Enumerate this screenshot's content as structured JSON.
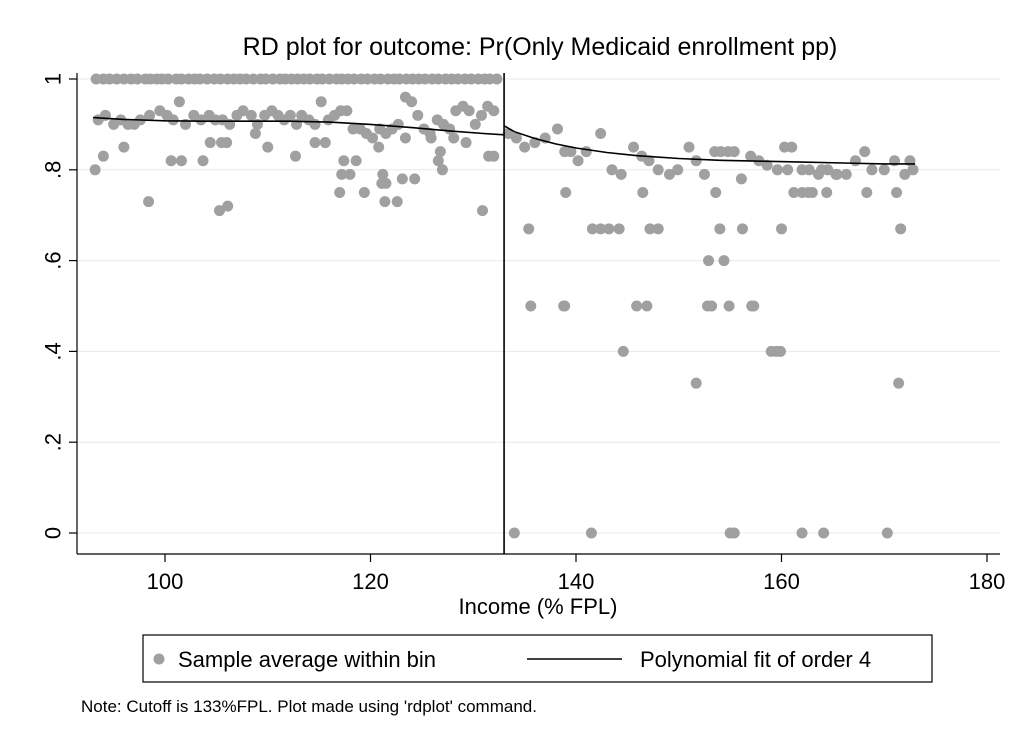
{
  "chart_data": {
    "type": "scatter",
    "title": "RD plot for outcome: Pr(Only Medicaid enrollment pp)",
    "xlabel": "Income (% FPL)",
    "ylabel": "",
    "xlim": [
      92,
      182
    ],
    "ylim": [
      0,
      1
    ],
    "xticks": [
      {
        "value": 100,
        "label": "100"
      },
      {
        "value": 120,
        "label": "120"
      },
      {
        "value": 140,
        "label": "140"
      },
      {
        "value": 160,
        "label": "160"
      },
      {
        "value": 180,
        "label": "180"
      }
    ],
    "yticks": [
      {
        "value": 0,
        "label": "0"
      },
      {
        "value": 0.2,
        "label": ".2"
      },
      {
        "value": 0.4,
        "label": ".4"
      },
      {
        "value": 0.6,
        "label": ".6"
      },
      {
        "value": 0.8,
        "label": ".8"
      },
      {
        "value": 1,
        "label": "1"
      }
    ],
    "grid": true,
    "cutoff": 133,
    "colors": {
      "points": "#a0a0a0",
      "fit": "#000000",
      "cutoff": "#000000",
      "grid": "#e8e8e8"
    },
    "legend": {
      "placement": "bottom",
      "entries": [
        {
          "label": "Sample average within bin",
          "marker": "circle"
        },
        {
          "label": "Polynomial fit of order 4",
          "marker": "line"
        }
      ]
    },
    "note": "Note: Cutoff is 133%FPL. Plot made using 'rdplot' command.",
    "series": [
      {
        "kind": "points",
        "x": [
          93.3,
          94.0,
          94.6,
          95.3,
          96.0,
          96.7,
          97.3,
          98.1,
          98.6,
          99.2,
          99.7,
          100.3,
          101.1,
          101.6,
          102.3,
          102.9,
          103.4,
          104.1,
          104.8,
          105.4,
          106.1,
          106.7,
          107.3,
          107.9,
          108.6,
          109.3,
          109.8,
          110.5,
          111.2,
          111.7,
          112.3,
          112.9,
          113.5,
          114.1,
          114.8,
          115.3,
          116.0,
          116.7,
          117.2,
          117.8,
          118.4,
          119.1,
          119.7,
          120.4,
          121.0,
          121.7,
          122.3,
          122.8,
          123.5,
          124.1,
          124.7,
          125.3,
          126.0,
          126.6,
          127.3,
          127.9,
          128.5,
          129.2,
          129.8,
          130.5,
          131.1,
          131.6,
          132.3,
          93.5,
          94.2,
          95.0,
          95.7,
          96.4,
          97.0,
          97.6,
          98.5,
          99.5,
          100.2,
          100.8,
          101.4,
          102.0,
          102.8,
          103.5,
          104.3,
          104.9,
          105.6,
          106.3,
          107.0,
          107.6,
          108.4,
          109.0,
          109.7,
          110.4,
          111.0,
          111.6,
          112.2,
          112.8,
          113.3,
          114.0,
          114.6,
          115.2,
          115.9,
          116.5,
          117.1,
          117.7,
          118.3,
          119.0,
          119.6,
          120.2,
          120.9,
          121.5,
          122.1,
          122.7,
          123.4,
          124.0,
          124.6,
          125.2,
          125.8,
          126.5,
          127.1,
          127.7,
          128.3,
          129.0,
          129.6,
          130.2,
          130.8,
          131.4,
          132.0,
          93.2,
          94.0,
          96.0,
          98.4,
          100.6,
          101.6,
          103.7,
          104.4,
          105.5,
          106.0,
          108.8,
          110.0,
          112.7,
          114.6,
          115.6,
          117.2,
          118.6,
          119.4,
          120.8,
          121.2,
          121.5,
          122.6,
          123.4,
          124.3,
          125.9,
          126.6,
          127.0,
          128.1,
          129.3,
          131.5,
          132.0,
          105.3,
          106.1,
          117.0,
          117.4,
          118.0,
          121.1,
          121.4,
          123.1,
          126.8,
          130.9,
          133.4,
          134.2,
          135.0,
          136.0,
          137.0,
          138.2,
          138.9,
          139.5,
          140.2,
          141.0,
          142.4,
          143.5,
          144.4,
          145.6,
          146.4,
          147.1,
          148.0,
          149.1,
          149.9,
          151.0,
          151.7,
          152.5,
          153.5,
          154.1,
          154.8,
          155.4,
          156.1,
          157.0,
          157.8,
          158.6,
          159.6,
          160.3,
          161.0,
          162.0,
          162.7,
          163.6,
          164.5,
          165.3,
          166.3,
          167.2,
          168.1,
          168.8,
          170.0,
          171.0,
          172.0,
          172.8,
          135.4,
          139.0,
          141.6,
          142.4,
          143.2,
          144.2,
          146.5,
          147.2,
          148.0,
          152.9,
          153.2,
          153.6,
          154.0,
          154.4,
          156.2,
          157.3,
          159.5,
          160.0,
          160.6,
          161.2,
          162.0,
          162.6,
          163.0,
          163.9,
          164.4,
          165.4,
          168.3,
          171.2,
          171.6,
          172.5,
          135.6,
          138.8,
          138.9,
          145.9,
          146.9,
          152.8,
          154.9,
          157.1,
          144.6,
          159.0,
          159.9,
          151.7,
          171.4,
          134.0,
          141.5,
          155.0,
          155.4,
          162.0,
          164.1,
          170.3
        ],
        "y": [
          1,
          1,
          1,
          1,
          1,
          1,
          1,
          1,
          1,
          1,
          1,
          1,
          1,
          1,
          1,
          1,
          1,
          1,
          1,
          1,
          1,
          1,
          1,
          1,
          1,
          1,
          1,
          1,
          1,
          1,
          1,
          1,
          1,
          1,
          1,
          1,
          1,
          1,
          1,
          1,
          1,
          1,
          1,
          1,
          1,
          1,
          1,
          1,
          1,
          1,
          1,
          1,
          1,
          1,
          1,
          1,
          1,
          1,
          1,
          1,
          1,
          1,
          1,
          0.91,
          0.92,
          0.9,
          0.91,
          0.9,
          0.9,
          0.91,
          0.92,
          0.93,
          0.92,
          0.91,
          0.95,
          0.9,
          0.92,
          0.91,
          0.92,
          0.91,
          0.91,
          0.9,
          0.92,
          0.93,
          0.92,
          0.9,
          0.92,
          0.93,
          0.92,
          0.91,
          0.92,
          0.9,
          0.92,
          0.91,
          0.9,
          0.95,
          0.91,
          0.92,
          0.93,
          0.93,
          0.89,
          0.89,
          0.88,
          0.87,
          0.89,
          0.88,
          0.89,
          0.9,
          0.96,
          0.95,
          0.92,
          0.89,
          0.88,
          0.91,
          0.9,
          0.89,
          0.93,
          0.94,
          0.93,
          0.9,
          0.92,
          0.94,
          0.93,
          0.8,
          0.83,
          0.85,
          0.73,
          0.82,
          0.82,
          0.82,
          0.86,
          0.86,
          0.86,
          0.88,
          0.85,
          0.83,
          0.86,
          0.86,
          0.79,
          0.82,
          0.75,
          0.85,
          0.79,
          0.77,
          0.73,
          0.87,
          0.78,
          0.87,
          0.82,
          0.8,
          0.87,
          0.86,
          0.83,
          0.83,
          0.71,
          0.72,
          0.75,
          0.82,
          0.79,
          0.77,
          0.73,
          0.78,
          0.84,
          0.71,
          0.88,
          0.87,
          0.85,
          0.86,
          0.87,
          0.89,
          0.84,
          0.84,
          0.82,
          0.84,
          0.88,
          0.8,
          0.79,
          0.85,
          0.83,
          0.82,
          0.8,
          0.79,
          0.8,
          0.85,
          0.82,
          0.79,
          0.84,
          0.84,
          0.84,
          0.84,
          0.78,
          0.83,
          0.82,
          0.81,
          0.8,
          0.85,
          0.85,
          0.8,
          0.8,
          0.79,
          0.8,
          0.79,
          0.79,
          0.82,
          0.84,
          0.8,
          0.8,
          0.82,
          0.79,
          0.8,
          0.67,
          0.75,
          0.67,
          0.67,
          0.67,
          0.67,
          0.75,
          0.67,
          0.67,
          0.6,
          0.5,
          0.75,
          0.67,
          0.6,
          0.67,
          0.5,
          0.4,
          0.67,
          0.8,
          0.75,
          0.75,
          0.75,
          0.75,
          0.8,
          0.75,
          0.79,
          0.75,
          0.75,
          0.67,
          0.82,
          0.5,
          0.5,
          0.5,
          0.5,
          0.5,
          0.5,
          0.5,
          0.5,
          0.4,
          0.4,
          0.4,
          0.33,
          0.33,
          0,
          0,
          0,
          0,
          0,
          0,
          0
        ]
      },
      {
        "kind": "fit_left",
        "x": [
          93,
          96,
          100,
          104,
          108,
          112,
          116,
          120,
          124,
          128,
          131,
          133
        ],
        "y": [
          0.915,
          0.911,
          0.908,
          0.907,
          0.907,
          0.907,
          0.905,
          0.9,
          0.893,
          0.885,
          0.88,
          0.877
        ]
      },
      {
        "kind": "fit_right",
        "x": [
          133,
          134,
          136,
          138,
          140,
          143,
          146,
          150,
          154,
          158,
          162,
          166,
          170,
          173
        ],
        "y": [
          0.897,
          0.884,
          0.869,
          0.857,
          0.848,
          0.838,
          0.831,
          0.825,
          0.821,
          0.819,
          0.817,
          0.815,
          0.813,
          0.813
        ]
      }
    ]
  }
}
